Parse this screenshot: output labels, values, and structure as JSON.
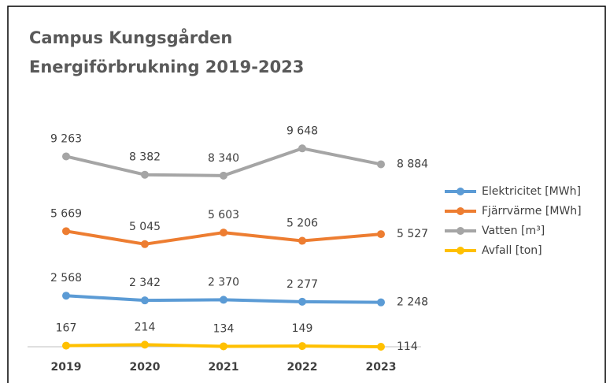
{
  "chart_data": {
    "type": "line",
    "title": [
      "Campus Kungsgården",
      "Energiförbrukning 2019-2023"
    ],
    "categories": [
      "2019",
      "2020",
      "2021",
      "2022",
      "2023"
    ],
    "ylim": [
      0,
      10000
    ],
    "legend": "right",
    "series": [
      {
        "name": "Elektricitet [MWh]",
        "color": "#5b9bd5",
        "values": [
          2568,
          2342,
          2370,
          2277,
          2248
        ],
        "value_labels": [
          "2 568",
          "2 342",
          "2 370",
          "2 277",
          "2 248"
        ]
      },
      {
        "name": "Fjärrvärme [MWh]",
        "color": "#ed7d31",
        "values": [
          5669,
          5045,
          5603,
          5206,
          5527
        ],
        "value_labels": [
          "5 669",
          "5 045",
          "5 603",
          "5 206",
          "5 527"
        ]
      },
      {
        "name": "Vatten [m³]",
        "color": "#a5a5a5",
        "values": [
          9263,
          8382,
          8340,
          9648,
          8884
        ],
        "value_labels": [
          "9 263",
          "8 382",
          "8 340",
          "9 648",
          "8 884"
        ]
      },
      {
        "name": "Avfall [ton]",
        "color": "#ffc000",
        "values": [
          167,
          214,
          134,
          149,
          114
        ],
        "value_labels": [
          "167",
          "214",
          "134",
          "149",
          "114"
        ]
      }
    ]
  }
}
